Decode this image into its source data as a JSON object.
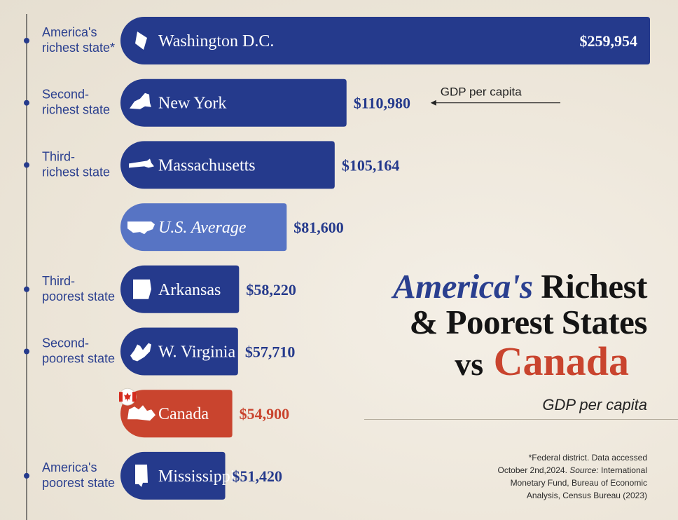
{
  "chart_data": {
    "type": "bar",
    "orientation": "horizontal",
    "categories": [
      "Washington D.C.",
      "New York",
      "Massachusetts",
      "U.S. Average",
      "Arkansas",
      "W. Virginia",
      "Canada",
      "Mississippi"
    ],
    "value_labels": [
      "$259,954",
      "$110,980",
      "$105,164",
      "$81,600",
      "$58,220",
      "$57,710",
      "$54,900",
      "$51,420"
    ],
    "values": [
      259954,
      110980,
      105164,
      81600,
      58220,
      57710,
      54900,
      51420
    ],
    "rank_labels": [
      [
        "America's",
        "richest state*"
      ],
      [
        "Second-",
        "richest state"
      ],
      [
        "Third-",
        "richest state"
      ],
      [],
      [
        "Third-",
        "poorest state"
      ],
      [
        "Second-",
        "poorest state"
      ],
      [],
      [
        "America's",
        "poorest state"
      ]
    ],
    "bar_kinds": [
      "state",
      "state",
      "state",
      "average",
      "state",
      "state",
      "canada",
      "state"
    ],
    "icons": [
      "dc-shape-icon",
      "new-york-shape-icon",
      "massachusetts-shape-icon",
      "us-map-icon",
      "arkansas-shape-icon",
      "west-virginia-shape-icon",
      "canada-map-icon",
      "mississippi-shape-icon"
    ],
    "annotation": "GDP per capita",
    "colors": {
      "state": "#253a8c",
      "average": "#5774c4",
      "canada": "#c9442e"
    }
  },
  "title": {
    "line1_highlight": "America's",
    "line1_rest": "Richest",
    "line2": "& Poorest States",
    "line3_vs": "vs",
    "line3_country": "Canada"
  },
  "subtitle": "GDP per capita",
  "footnote": {
    "line1": "*Federal district. Data accessed",
    "line2_a": "October 2nd,2024. ",
    "line2_b": "Source:",
    "line2_c": " International",
    "line3": "Monetary Fund, Bureau of Economic",
    "line4": "Analysis, Census Bureau (2023)"
  }
}
